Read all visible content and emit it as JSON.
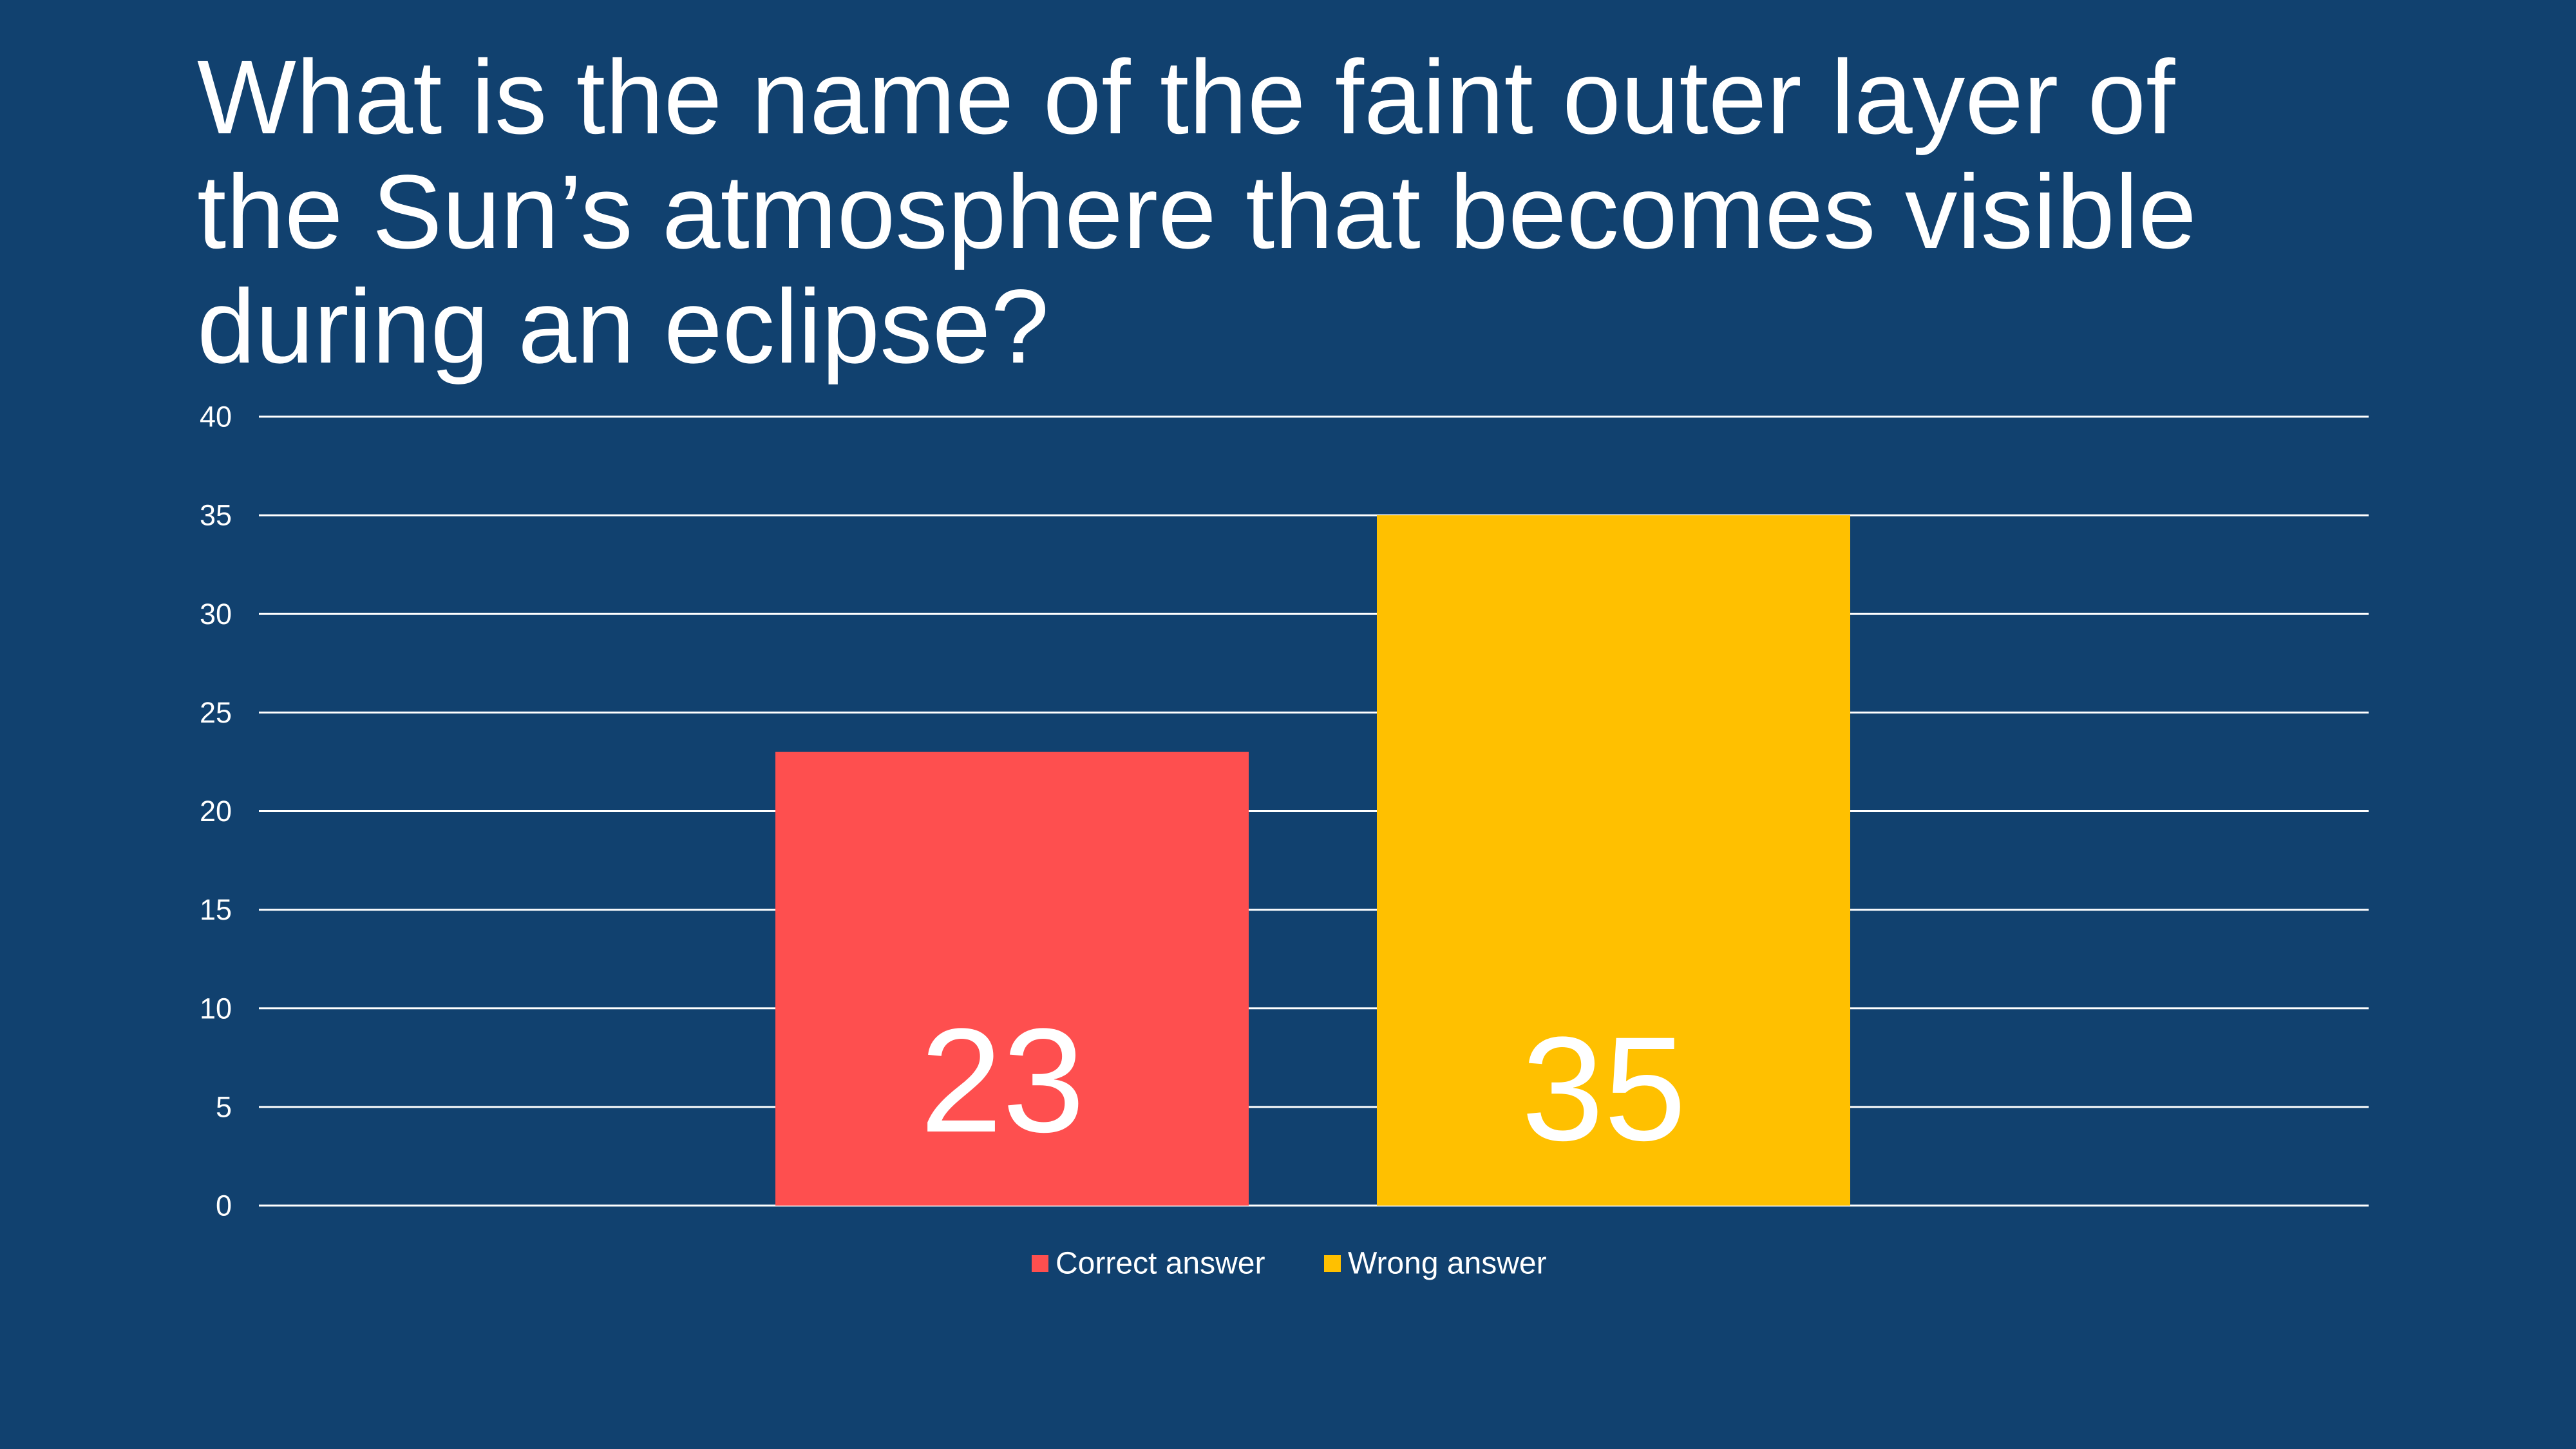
{
  "slide": {
    "title_lines": [
      "What is the name of the faint outer layer of",
      "the Sun’s atmosphere that becomes visible",
      "during an eclipse?"
    ],
    "background": "#11416f"
  },
  "chart_data": {
    "type": "bar",
    "title": "",
    "xlabel": "",
    "ylabel": "",
    "ylim": [
      0,
      40
    ],
    "yticks": [
      0,
      5,
      10,
      15,
      20,
      25,
      30,
      35,
      40
    ],
    "grid": true,
    "legend_position": "bottom",
    "series": [
      {
        "name": "Correct answer",
        "value": 23,
        "label": "23",
        "color": "#fe4f4f"
      },
      {
        "name": "Wrong answer",
        "value": 35,
        "label": "35",
        "color": "#ffc000"
      }
    ]
  }
}
